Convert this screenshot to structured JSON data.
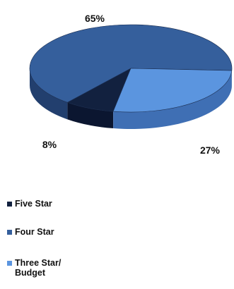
{
  "chart_data": {
    "type": "pie",
    "style": "3d",
    "title": "",
    "series": [
      {
        "name": "Five Star",
        "value": 8,
        "label": "8%",
        "color": "#12213f",
        "side_color": "#0b1630"
      },
      {
        "name": "Four Star",
        "value": 65,
        "label": "65%",
        "color": "#355f9c",
        "side_color": "#223f6e"
      },
      {
        "name": "Three Star/ Budget",
        "value": 27,
        "label": "27%",
        "color": "#5b95df",
        "side_color": "#3f6fb4"
      }
    ],
    "legend_placement": "bottom-left"
  }
}
